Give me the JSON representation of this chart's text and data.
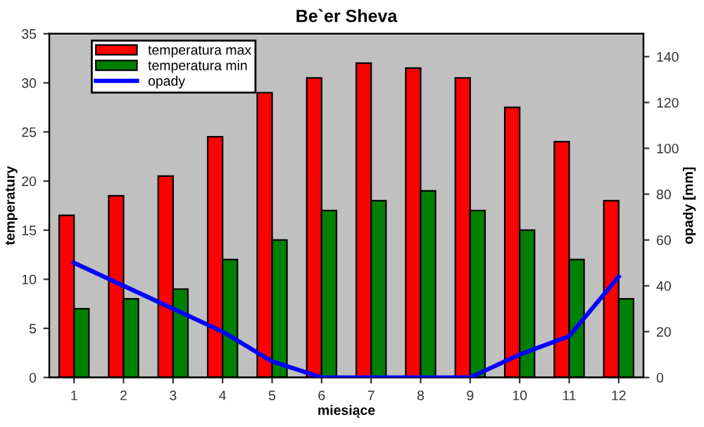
{
  "chart_data": {
    "type": "bar",
    "title": "Be`er Sheva",
    "xlabel": "miesiące",
    "ylabel": "temperatury",
    "y2label": "opady [mm]",
    "categories": [
      "1",
      "2",
      "3",
      "4",
      "5",
      "6",
      "7",
      "8",
      "9",
      "10",
      "11",
      "12"
    ],
    "series": [
      {
        "name": "temperatura max",
        "color": "#ff0000",
        "values": [
          16.5,
          18.5,
          20.5,
          24.5,
          29,
          30.5,
          32,
          31.5,
          30.5,
          27.5,
          24,
          18
        ]
      },
      {
        "name": "temperatura min",
        "color": "#008000",
        "values": [
          7,
          8,
          9,
          12,
          14,
          17,
          18,
          19,
          17,
          15,
          12,
          8
        ]
      },
      {
        "name": "opady",
        "type": "line",
        "axis": "y2",
        "color": "#0000ff",
        "values": [
          50,
          40,
          30,
          20,
          7,
          0,
          0,
          0,
          0,
          10,
          18,
          44
        ]
      }
    ],
    "ylim": [
      0,
      35
    ],
    "yticks": [
      0,
      5,
      10,
      15,
      20,
      25,
      30,
      35
    ],
    "y2lim": [
      0,
      150
    ],
    "y2ticks": [
      0,
      20,
      40,
      60,
      80,
      100,
      120,
      140
    ],
    "legend": "top left",
    "grid": false,
    "marker": "none",
    "line_style": "solid"
  }
}
